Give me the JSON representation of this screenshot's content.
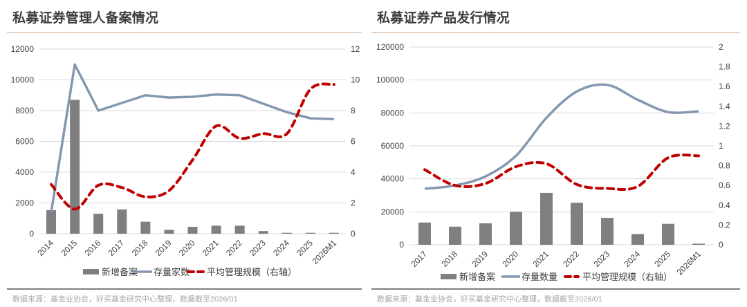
{
  "panels": [
    {
      "title": "私募证券管理人备案情况",
      "source": "数据来源：基金业协会，好买基金研究中心整理，数据截至2026/01"
    },
    {
      "title": "私募证券产品发行情况",
      "source": "数据来源：基金业协会，好买基金研究中心整理，数据截至2026/01"
    }
  ],
  "colors": {
    "bar": "#7f7f7f",
    "stock_line": "#8497b0",
    "avg_line": "#c00000",
    "grid": "#d9d9d9",
    "text": "#404040",
    "title_rule": "#c9a78c",
    "bottom_rule": "#7f7f7f",
    "source_text": "#a6a6a6"
  },
  "chart_data": [
    {
      "type": "bar",
      "title": "私募证券管理人备案情况",
      "xlabel": "",
      "categories": [
        "2014",
        "2015",
        "2016",
        "2017",
        "2018",
        "2019",
        "2020",
        "2021",
        "2022",
        "2023",
        "2024",
        "2025",
        "2026M1"
      ],
      "y_left": {
        "label": "",
        "range": [
          0,
          12000
        ],
        "ticks": [
          "0",
          "2000",
          "4000",
          "6000",
          "8000",
          "10000",
          "12000"
        ]
      },
      "y_right": {
        "label": "",
        "range": [
          0,
          12
        ],
        "ticks": [
          "0",
          "2",
          "4",
          "6",
          "8",
          "10",
          "12"
        ]
      },
      "grid": true,
      "legend_position": "bottom",
      "series": [
        {
          "name": "新增备案",
          "kind": "bar",
          "axis": "left",
          "values": [
            1530,
            8700,
            1300,
            1580,
            780,
            250,
            450,
            520,
            520,
            170,
            60,
            60,
            60
          ]
        },
        {
          "name": "存量家数",
          "kind": "line",
          "axis": "left",
          "values": [
            1400,
            11000,
            8000,
            8500,
            9000,
            8850,
            8900,
            9050,
            9000,
            8450,
            7900,
            7500,
            7450
          ]
        },
        {
          "name": "平均管理规模（右轴）",
          "kind": "dashed-line",
          "axis": "right",
          "values": [
            3.2,
            1.6,
            3.15,
            3.0,
            2.4,
            2.8,
            4.8,
            7.0,
            6.2,
            6.5,
            6.5,
            9.4,
            9.7
          ]
        }
      ]
    },
    {
      "type": "bar",
      "title": "私募证券产品发行情况",
      "xlabel": "",
      "categories": [
        "2017",
        "2018",
        "2019",
        "2020",
        "2021",
        "2022",
        "2023",
        "2024",
        "2025",
        "2026M1"
      ],
      "y_left": {
        "label": "",
        "range": [
          0,
          120000
        ],
        "ticks": [
          "0",
          "20000",
          "40000",
          "60000",
          "80000",
          "100000",
          "120000"
        ]
      },
      "y_right": {
        "label": "",
        "range": [
          0,
          2
        ],
        "ticks": [
          "0",
          "0.2",
          "0.4",
          "0.6",
          "0.8",
          "1",
          "1.2",
          "1.4",
          "1.6",
          "1.8",
          "2"
        ]
      },
      "grid": true,
      "legend_position": "bottom",
      "series": [
        {
          "name": "新增备案",
          "kind": "bar",
          "axis": "left",
          "values": [
            13500,
            11000,
            13000,
            20000,
            31500,
            25500,
            16300,
            6500,
            12700,
            700
          ]
        },
        {
          "name": "存量数量",
          "kind": "line",
          "axis": "left",
          "values": [
            34000,
            36000,
            41500,
            54000,
            77000,
            93000,
            97000,
            88000,
            80500,
            81000
          ]
        },
        {
          "name": "平均管理规模（右轴）",
          "kind": "dashed-line",
          "axis": "right",
          "values": [
            0.76,
            0.6,
            0.62,
            0.79,
            0.82,
            0.61,
            0.57,
            0.59,
            0.88,
            0.9
          ]
        }
      ]
    }
  ]
}
